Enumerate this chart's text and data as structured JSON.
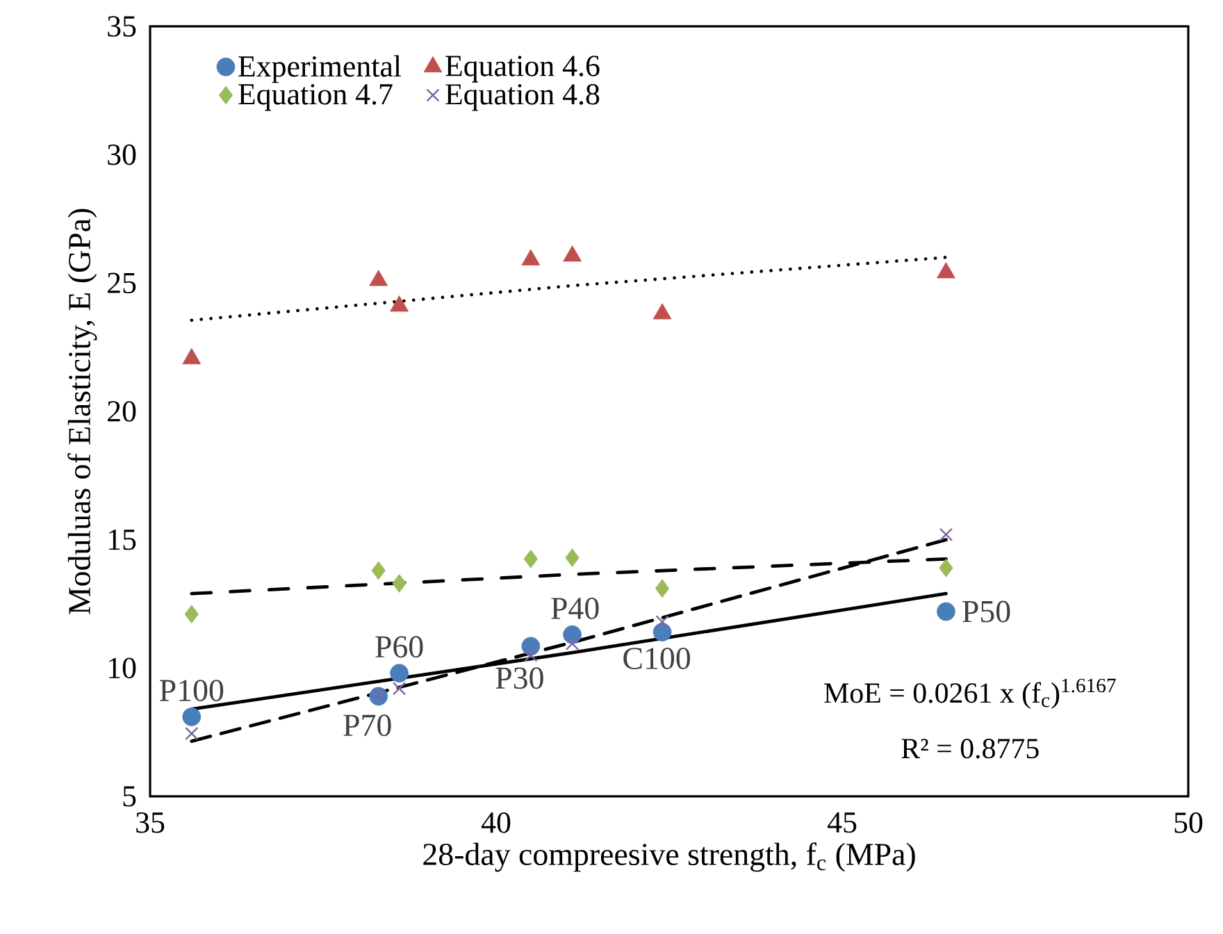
{
  "chart_data": {
    "type": "scatter",
    "xlabel": "28-day compreesive strength, f$_{c}$ (MPa)",
    "ylabel": "Moduluas of Elasticity, E (GPa)",
    "x": [
      35.6,
      38.3,
      38.6,
      40.5,
      41.1,
      42.4,
      46.5
    ],
    "xlim": [
      35,
      50
    ],
    "xticks": [
      35,
      40,
      45,
      50
    ],
    "ylim": [
      5,
      35
    ],
    "yticks": [
      5,
      10,
      15,
      20,
      25,
      30,
      35
    ],
    "grid": false,
    "legend": "top left",
    "series": [
      {
        "name": "Experimental",
        "color": "#4a7ebb",
        "marker": "circle",
        "values": [
          8.1,
          8.9,
          9.8,
          10.85,
          11.3,
          11.4,
          12.2
        ]
      },
      {
        "name": "Equation 4.6",
        "color": "#c0504d",
        "marker": "triangle",
        "values": [
          22.05,
          25.1,
          24.1,
          25.9,
          26.05,
          23.8,
          25.4
        ]
      },
      {
        "name": "Equation 4.7",
        "color": "#9bbb59",
        "marker": "diamond",
        "values": [
          12.1,
          13.8,
          13.3,
          14.25,
          14.3,
          13.1,
          13.9
        ]
      },
      {
        "name": "Equation 4.8",
        "color": "#8064a2",
        "marker": "cross",
        "values": [
          7.45,
          8.95,
          9.2,
          10.5,
          10.95,
          11.8,
          15.2
        ]
      },
      {
        "type": "line",
        "color": "#000000",
        "marker": "none",
        "line_style": "solid",
        "x": [
          35.6,
          41.1,
          46.5
        ],
        "values": [
          8.4,
          10.6,
          12.9
        ]
      },
      {
        "type": "line",
        "color": "#000000",
        "marker": "none",
        "line_style": "dotted",
        "x": [
          35.6,
          41.1,
          46.5
        ],
        "values": [
          23.55,
          24.9,
          26.0
        ]
      },
      {
        "type": "line",
        "color": "#000000",
        "marker": "none",
        "line_style": "dashdot",
        "x": [
          35.6,
          41.1,
          46.5
        ],
        "values": [
          12.9,
          13.65,
          14.25
        ]
      },
      {
        "type": "line",
        "color": "#000000",
        "marker": "none",
        "line_style": "dashed",
        "x": [
          35.6,
          41.1,
          46.5
        ],
        "values": [
          7.15,
          11.0,
          15.0
        ]
      }
    ],
    "annotations": [
      {
        "text": "P100",
        "x": 35.6,
        "y": 8.1
      },
      {
        "text": "P70",
        "x": 38.3,
        "y": 8.9
      },
      {
        "text": "P60",
        "x": 38.6,
        "y": 9.8
      },
      {
        "text": "P30",
        "x": 40.5,
        "y": 10.85
      },
      {
        "text": "P40",
        "x": 41.1,
        "y": 11.3
      },
      {
        "text": "C100",
        "x": 42.4,
        "y": 11.4
      },
      {
        "text": "P50",
        "x": 46.5,
        "y": 12.2
      },
      "MoE = 0.0261 x (f$_{c}$)$^{1.6167}$",
      "R² = 0.8775"
    ]
  }
}
